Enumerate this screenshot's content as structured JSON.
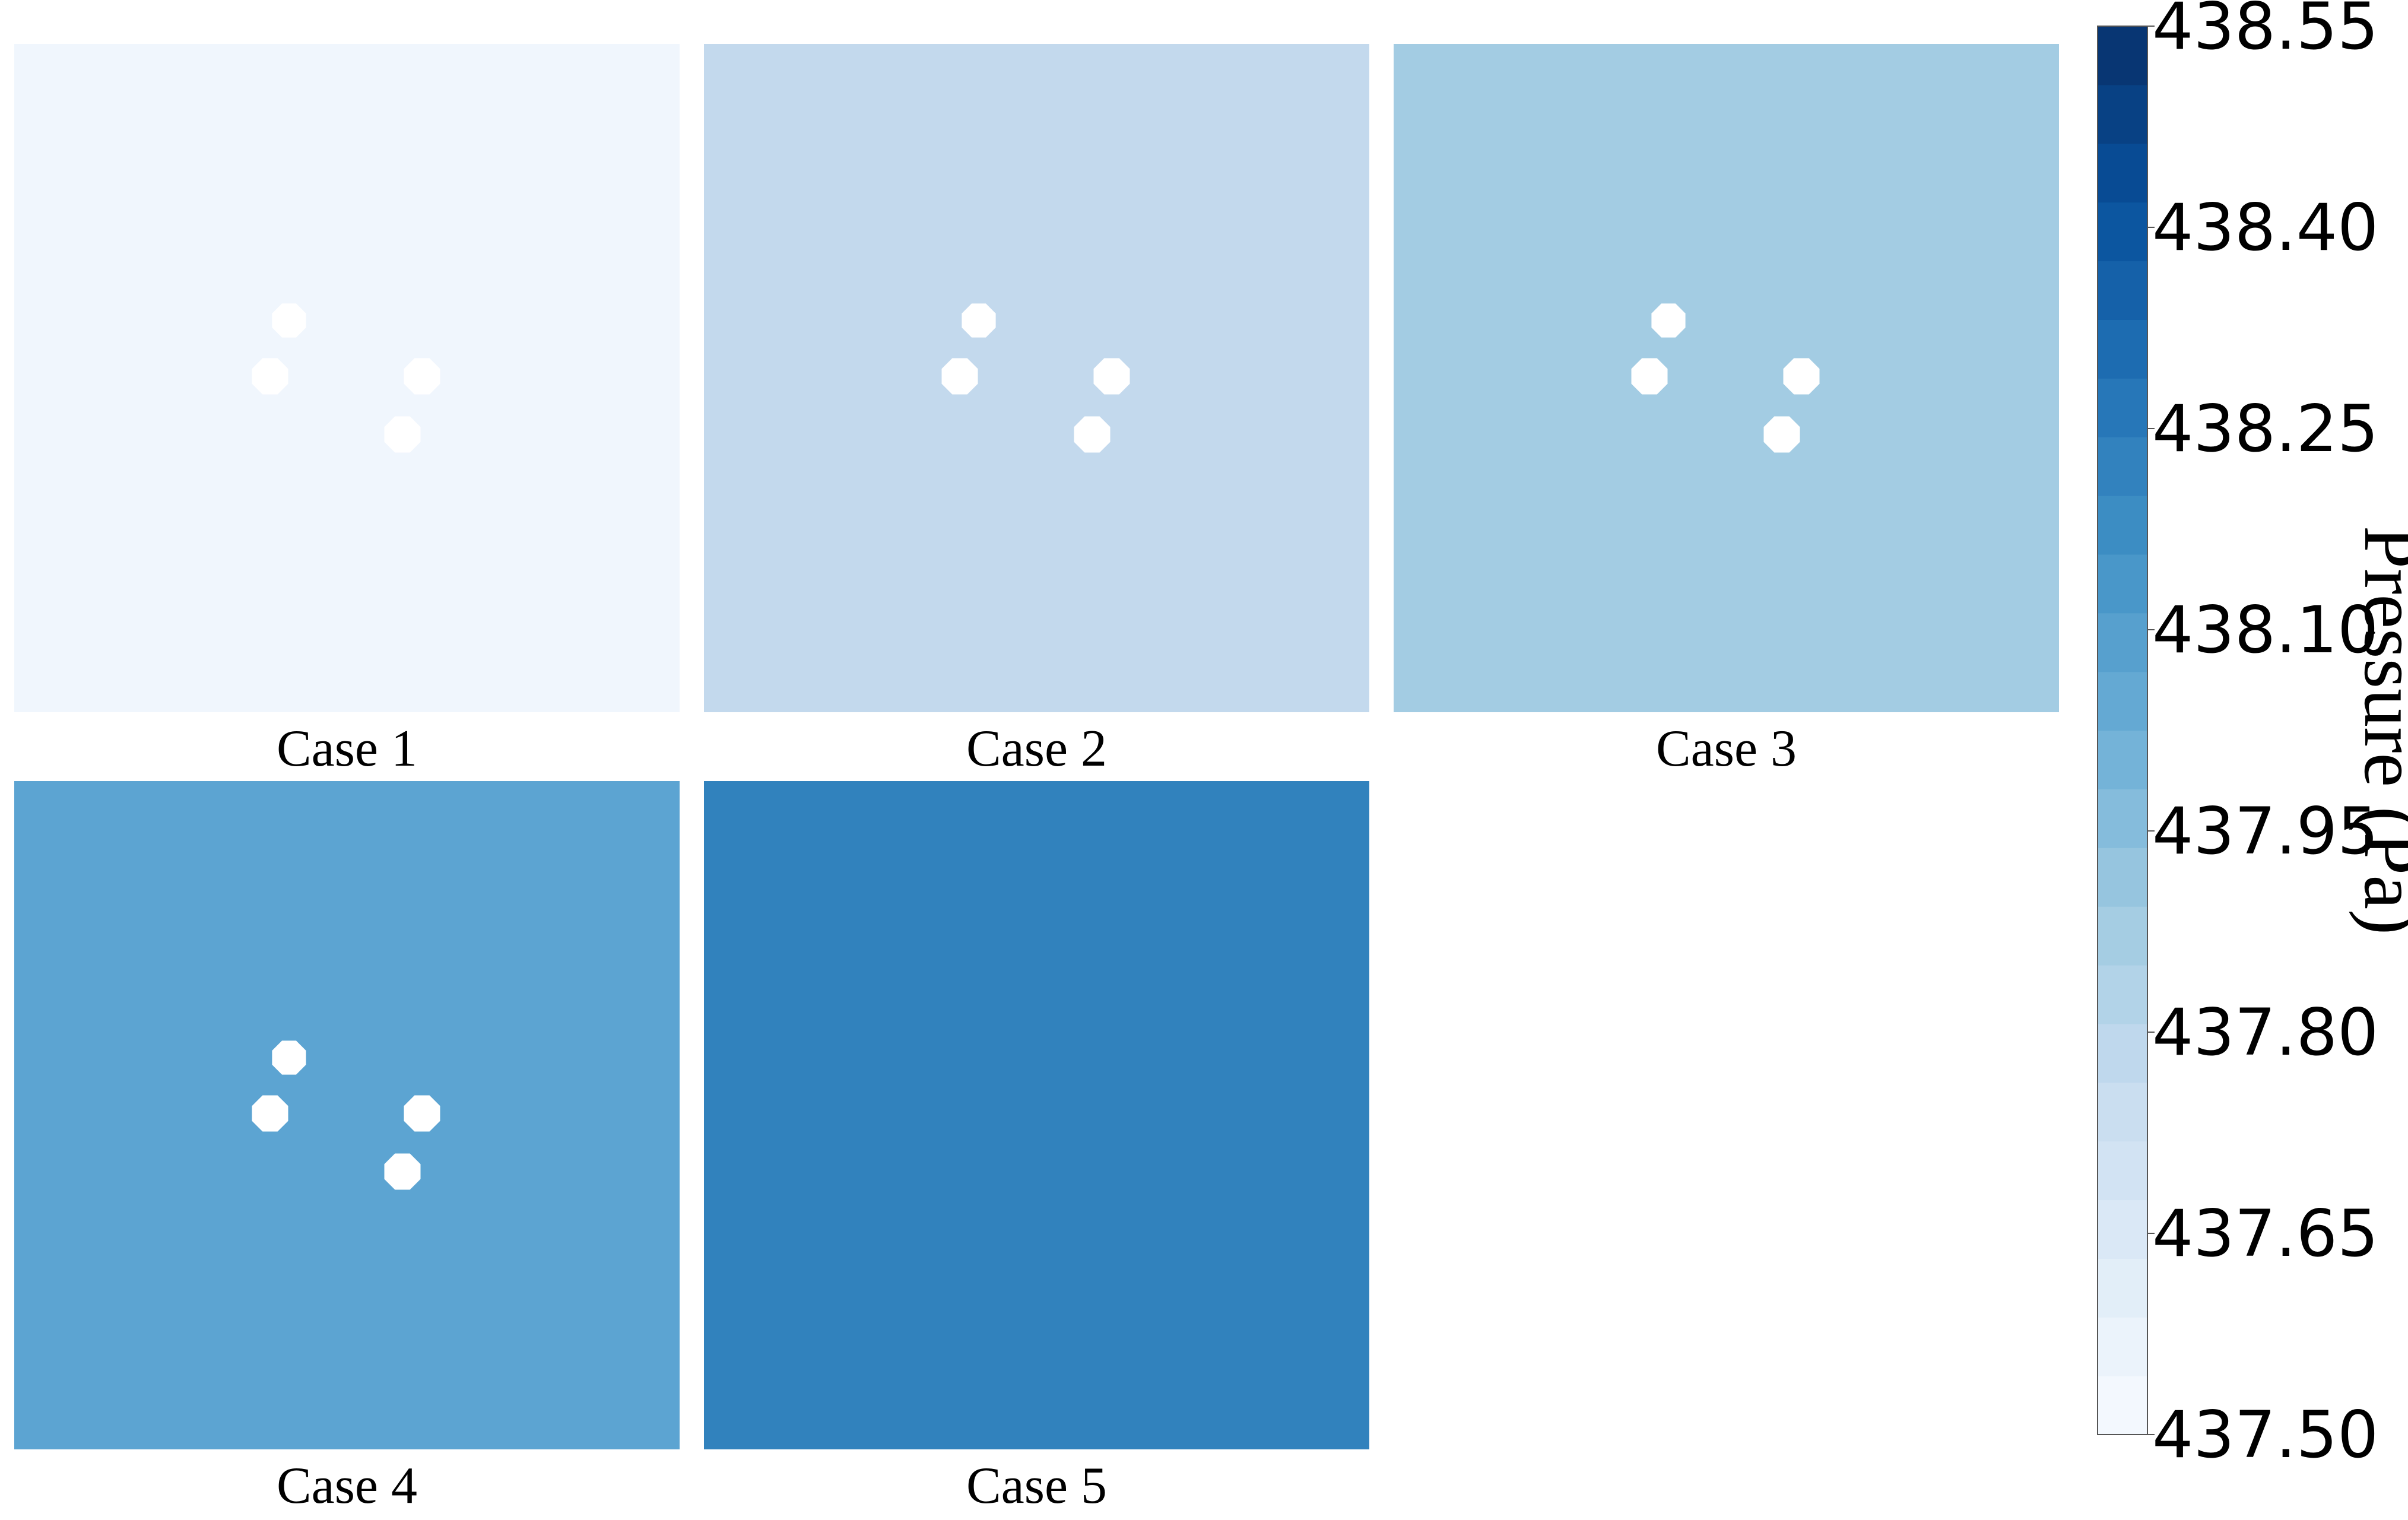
{
  "chart_data": {
    "type": "heatmap",
    "panels": [
      {
        "label": "Case 1",
        "value": 437.52,
        "color": "#f0f6fd",
        "obstacles": 4
      },
      {
        "label": "Case 2",
        "value": 437.74,
        "color": "#c3d9ed",
        "obstacles": 4
      },
      {
        "label": "Case 3",
        "value": 437.86,
        "color": "#a3cce3",
        "obstacles": 4
      },
      {
        "label": "Case 4",
        "value": 438.04,
        "color": "#5ca4d2",
        "obstacles": 4
      },
      {
        "label": "Case 5",
        "value": 438.22,
        "color": "#3182bd",
        "obstacles": 0
      }
    ],
    "colorbar": {
      "label": "Pressure (Pa)",
      "range": [
        437.5,
        438.55
      ],
      "levels": 24,
      "colormap": "Blues",
      "ticks": [
        "437.50",
        "437.65",
        "437.80",
        "437.95",
        "438.10",
        "438.25",
        "438.40",
        "438.55"
      ]
    }
  }
}
